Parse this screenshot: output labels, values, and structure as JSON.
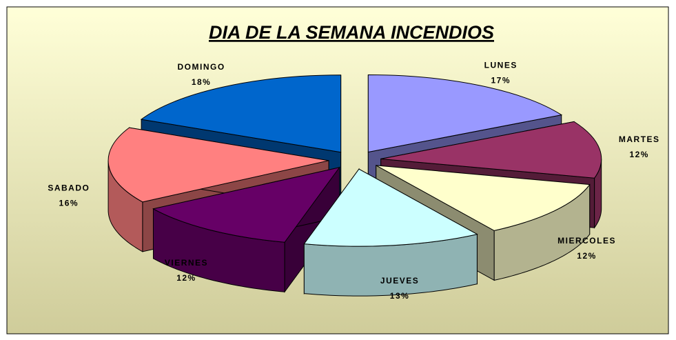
{
  "chart_data": {
    "type": "pie",
    "title": "DIA DE LA SEMANA INCENDIOS",
    "categories": [
      "LUNES",
      "MARTES",
      "MIERCOLES",
      "JUEVES",
      "VIERNES",
      "SABADO",
      "DOMINGO"
    ],
    "values": [
      17,
      12,
      12,
      13,
      12,
      16,
      18
    ],
    "value_labels": [
      "17%",
      "12%",
      "12%",
      "13%",
      "12%",
      "16%",
      "18%"
    ],
    "colors": [
      "#9999ff",
      "#993366",
      "#ffffcc",
      "#ccffff",
      "#660066",
      "#ff8080",
      "#0066cc"
    ]
  }
}
